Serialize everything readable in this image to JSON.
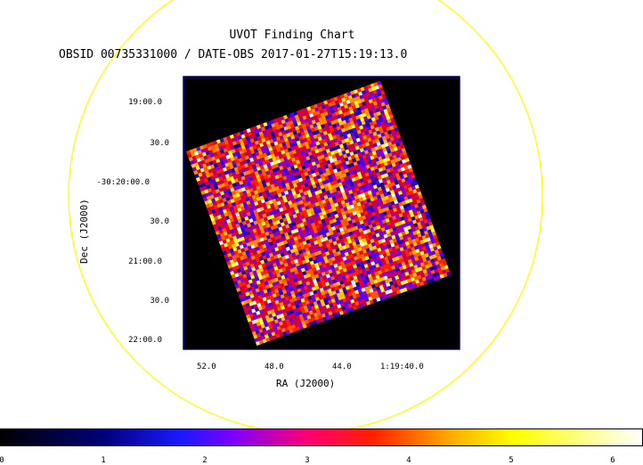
{
  "chart_data": {
    "type": "heatmap",
    "title": "UVOT Finding Chart",
    "subtitle": "OBSID 00735331000 / DATE-OBS 2017-01-27T15:19:13.0",
    "xlabel": "RA (J2000)",
    "ylabel": "Dec (J2000)",
    "x_ticks": [
      "52.0",
      "48.0",
      "44.0",
      "1:19:40.0"
    ],
    "y_ticks": [
      "19:00.0",
      "30.0",
      "-30:20:00.0",
      "30.0",
      "21:00.0",
      "30.0",
      "22:00.0"
    ],
    "colorbar": {
      "ticks": [
        "0",
        "1",
        "2",
        "3",
        "4",
        "5",
        "6"
      ],
      "range": [
        0,
        6
      ],
      "colors": [
        "#000000",
        "#0000ff",
        "#ff0000",
        "#ffff00",
        "#ffffff"
      ]
    },
    "image_note": "noise",
    "circle_color": "#ffff00",
    "frame_color": "#00008b"
  }
}
